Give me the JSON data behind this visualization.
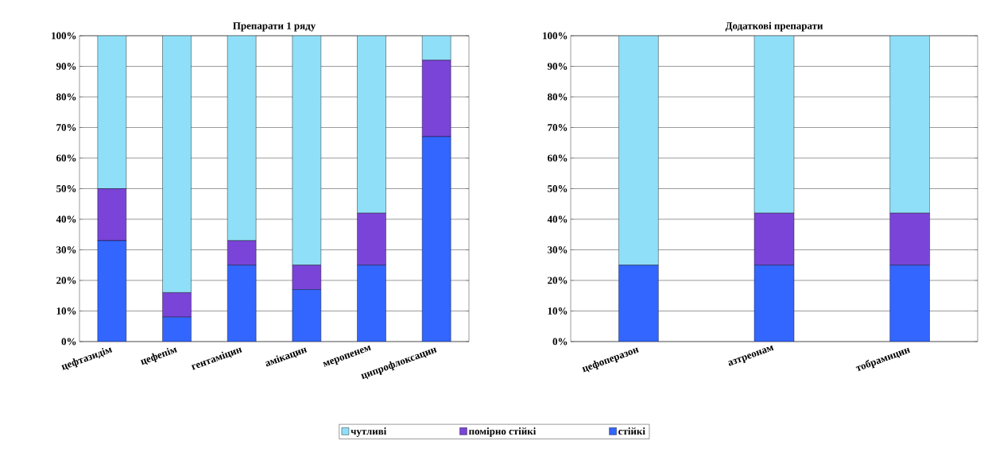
{
  "chart_data": [
    {
      "type": "bar",
      "title": "Препарати 1 ряду",
      "stacked": true,
      "categories": [
        "цефтазидім",
        "цефепім",
        "гентаміцин",
        "амікацин",
        "меропенем",
        "ципрофлоксацин"
      ],
      "series": [
        {
          "name": "стійкі",
          "color": "#3366ff",
          "values": [
            33,
            8,
            25,
            17,
            25,
            67
          ]
        },
        {
          "name": "помірно стійкі",
          "color": "#7a44d8",
          "values": [
            17,
            8,
            8,
            8,
            17,
            25
          ]
        },
        {
          "name": "чутливі",
          "color": "#8fdff8",
          "values": [
            50,
            84,
            67,
            75,
            58,
            8
          ]
        }
      ],
      "ylim": [
        0,
        100
      ],
      "yticks": [
        {
          "value": 0,
          "label": "0%"
        },
        {
          "value": 10,
          "label": "10%"
        },
        {
          "value": 20,
          "label": "20%"
        },
        {
          "value": 30,
          "label": "30%"
        },
        {
          "value": 40,
          "label": "40%"
        },
        {
          "value": 50,
          "label": "50%"
        },
        {
          "value": 60,
          "label": "60%"
        },
        {
          "value": 70,
          "label": "70%"
        },
        {
          "value": 80,
          "label": "80%"
        },
        {
          "value": 90,
          "label": "90%"
        },
        {
          "value": 100,
          "label": "100%"
        }
      ],
      "grid": "y",
      "legend": "bottom"
    },
    {
      "type": "bar",
      "title": "Додаткові препарати",
      "stacked": true,
      "categories": [
        "цефоперазон",
        "азтреонам",
        "тобрамицин"
      ],
      "series": [
        {
          "color": "#3366ff",
          "values": [
            25,
            25,
            25
          ]
        },
        {
          "color": "#7a44d8",
          "values": [
            0,
            17,
            17
          ]
        },
        {
          "color": "#8fdff8",
          "values": [
            75,
            58,
            58
          ]
        }
      ],
      "ylim": [
        0,
        100
      ],
      "yticks": [
        {
          "value": 0,
          "label": "0%"
        },
        {
          "value": 10,
          "label": "10%"
        },
        {
          "value": 20,
          "label": "20%"
        },
        {
          "value": 30,
          "label": "30%"
        },
        {
          "value": 40,
          "label": "40%"
        },
        {
          "value": 50,
          "label": "50%"
        },
        {
          "value": 60,
          "label": "60%"
        },
        {
          "value": 70,
          "label": "70%"
        },
        {
          "value": 80,
          "label": "80%"
        },
        {
          "value": 90,
          "label": "90%"
        },
        {
          "value": 100,
          "label": "100%"
        }
      ],
      "grid": "y"
    }
  ]
}
